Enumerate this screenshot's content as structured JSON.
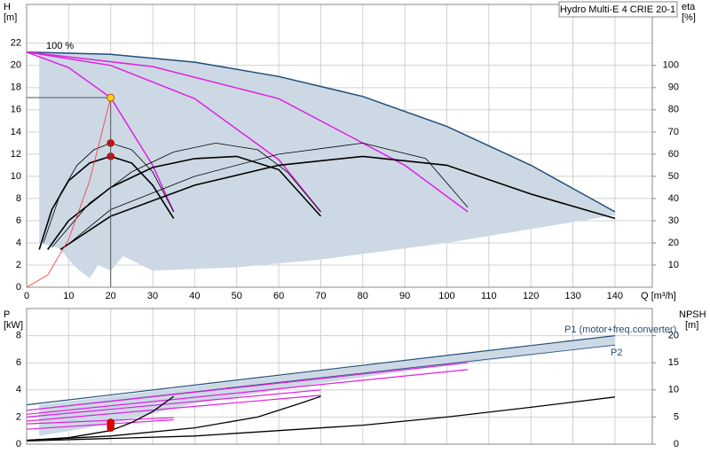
{
  "chart_data": [
    {
      "type": "line",
      "title": "Hydro Multi-E 4 CRIE 20-1",
      "y_label": "H",
      "y_unit": "[m]",
      "y2_label": "eta",
      "y2_unit": "[%]",
      "x_label": "Q [m³/h]",
      "annotations": [
        "100 %"
      ],
      "grid": true,
      "xlim": [
        0,
        148.9
      ],
      "ylim": [
        0,
        25.5
      ],
      "y2lim": [
        0,
        127.5
      ],
      "xticks": [
        0,
        10,
        20,
        30,
        40,
        50,
        60,
        70,
        80,
        90,
        100,
        110,
        120,
        130,
        140
      ],
      "yticks": [
        0,
        2,
        4,
        6,
        8,
        10,
        12,
        14,
        16,
        18,
        20,
        22
      ],
      "y2ticks": [
        10,
        20,
        30,
        40,
        50,
        60,
        70,
        80,
        90,
        100
      ],
      "series": [
        {
          "kind": "area",
          "color": "#ccd9e5",
          "x": [
            3,
            20,
            40,
            60,
            80,
            100,
            120,
            140,
            140,
            100,
            70,
            50,
            30,
            23,
            20,
            17,
            15,
            12,
            10,
            8,
            3
          ],
          "values": [
            21.2,
            21,
            20.3,
            19,
            17.2,
            14.5,
            11,
            6.8,
            6.5,
            4,
            2.5,
            1.8,
            1.5,
            2.8,
            1.5,
            2,
            0.8,
            1.7,
            2.5,
            3.5,
            4
          ]
        },
        {
          "color": "#1f4e79",
          "width": 1.5,
          "x": [
            0,
            20,
            40,
            60,
            80,
            100,
            120,
            140
          ],
          "values": [
            21.2,
            21,
            20.3,
            19,
            17.2,
            14.5,
            11,
            6.8
          ]
        },
        {
          "color": "#e020e0",
          "width": 1.5,
          "x": [
            0,
            10,
            20,
            30,
            35
          ],
          "values": [
            21.2,
            19.8,
            17.1,
            11,
            6.8
          ]
        },
        {
          "color": "#e020e0",
          "width": 1.5,
          "x": [
            0,
            20,
            40,
            60,
            70
          ],
          "values": [
            21.2,
            20,
            17,
            11.5,
            6.8
          ]
        },
        {
          "color": "#e020e0",
          "width": 1.5,
          "x": [
            0,
            30,
            60,
            90,
            105
          ],
          "values": [
            21.2,
            19.9,
            17,
            11,
            6.8
          ]
        },
        {
          "color": "#000000",
          "width": 0.8,
          "axis": "y2",
          "x": [
            4,
            8,
            12,
            16,
            20,
            25,
            30,
            35
          ],
          "values": [
            20,
            42,
            55,
            62,
            65,
            62,
            52,
            34
          ]
        },
        {
          "color": "#000000",
          "width": 0.8,
          "axis": "y2",
          "x": [
            6,
            15,
            25,
            35,
            45,
            55,
            62,
            70
          ],
          "values": [
            18,
            38,
            52,
            61,
            65,
            62,
            52,
            34
          ]
        },
        {
          "color": "#000000",
          "width": 0.8,
          "axis": "y2",
          "x": [
            9,
            20,
            40,
            60,
            80,
            95,
            105
          ],
          "values": [
            18,
            35,
            50,
            60,
            65,
            58,
            36
          ]
        },
        {
          "color": "#000000",
          "width": 1.6,
          "axis": "y2",
          "x": [
            3,
            6,
            10,
            15,
            20,
            25,
            30,
            35
          ],
          "values": [
            17,
            35,
            48,
            56,
            59,
            56,
            46,
            31
          ]
        },
        {
          "color": "#000000",
          "width": 1.6,
          "axis": "y2",
          "x": [
            5,
            10,
            20,
            30,
            40,
            50,
            60,
            70
          ],
          "values": [
            17,
            30,
            45,
            54,
            58,
            59,
            53,
            32
          ]
        },
        {
          "color": "#000000",
          "width": 1.6,
          "axis": "y2",
          "x": [
            8,
            20,
            40,
            60,
            80,
            100,
            120,
            140
          ],
          "values": [
            17,
            32,
            46,
            55,
            59,
            55,
            42,
            31
          ]
        },
        {
          "color": "#ff3030",
          "width": 0.8,
          "x": [
            0,
            5,
            10,
            15,
            20
          ],
          "values": [
            0,
            1.1,
            4.3,
            9.6,
            17.1
          ]
        },
        {
          "marker": true,
          "color": "#e00000",
          "axis": "y2",
          "x": [
            20,
            20
          ],
          "values": [
            65,
            59
          ]
        },
        {
          "marker": true,
          "droplines": true,
          "color": "#ffd700",
          "x": [
            20
          ],
          "values": [
            17.1
          ]
        }
      ]
    },
    {
      "type": "line",
      "y_label": "P",
      "y_unit": "[kW]",
      "y2_label": "NPSH",
      "y2_unit": "[m]",
      "annotations": [
        "P1 (motor+freq.converter)",
        "P2"
      ],
      "grid": true,
      "xlim": [
        0,
        148.9
      ],
      "ylim": [
        0,
        10
      ],
      "y2lim": [
        0,
        25
      ],
      "xticks": [
        0,
        10,
        20,
        30,
        40,
        50,
        60,
        70,
        80,
        90,
        100,
        110,
        120,
        130,
        140
      ],
      "yticks": [
        0,
        2,
        4,
        6,
        8
      ],
      "y2ticks": [
        0,
        5,
        10,
        15,
        20
      ],
      "series": [
        {
          "kind": "area",
          "color": "#ccd9e5",
          "x": [
            3,
            140,
            140,
            100,
            70,
            40,
            20,
            3
          ],
          "values": [
            2.9,
            8.0,
            7.3,
            5.8,
            4.5,
            3.0,
            1.5,
            0.6
          ]
        },
        {
          "color": "#1f4e79",
          "width": 1.2,
          "x": [
            0,
            140
          ],
          "values": [
            2.9,
            8.0
          ]
        },
        {
          "color": "#1f4e79",
          "width": 0.8,
          "x": [
            0,
            140
          ],
          "values": [
            2.5,
            7.3
          ]
        },
        {
          "color": "#e020e0",
          "width": 1.2,
          "x": [
            0,
            35
          ],
          "values": [
            1.5,
            1.95
          ]
        },
        {
          "color": "#e020e0",
          "width": 1.2,
          "x": [
            0,
            35
          ],
          "values": [
            1.1,
            1.8
          ]
        },
        {
          "color": "#e020e0",
          "width": 1.2,
          "x": [
            0,
            70
          ],
          "values": [
            2.0,
            4.0
          ]
        },
        {
          "color": "#e020e0",
          "width": 1.2,
          "x": [
            0,
            70
          ],
          "values": [
            1.7,
            3.6
          ]
        },
        {
          "color": "#e020e0",
          "width": 1.2,
          "x": [
            0,
            105
          ],
          "values": [
            2.5,
            6.0
          ]
        },
        {
          "color": "#e020e0",
          "width": 1.2,
          "x": [
            0,
            105
          ],
          "values": [
            2.2,
            5.5
          ]
        },
        {
          "color": "#000000",
          "width": 1.3,
          "axis": "y2",
          "x": [
            0,
            10,
            20,
            25,
            30,
            35
          ],
          "values": [
            0.7,
            1.2,
            2.5,
            4,
            6,
            8.8
          ]
        },
        {
          "color": "#000000",
          "width": 1.3,
          "axis": "y2",
          "x": [
            0,
            20,
            40,
            55,
            65,
            70
          ],
          "values": [
            0.7,
            1.5,
            3,
            5,
            7.5,
            8.8
          ]
        },
        {
          "color": "#000000",
          "width": 1.3,
          "axis": "y2",
          "x": [
            0,
            40,
            80,
            100,
            120,
            140
          ],
          "values": [
            0.6,
            1.5,
            3.5,
            5.0,
            6.8,
            8.7
          ]
        },
        {
          "marker": true,
          "color": "#e00000",
          "x": [
            20,
            20,
            20
          ],
          "values": [
            1.2,
            1.4,
            1.6
          ]
        }
      ]
    }
  ]
}
